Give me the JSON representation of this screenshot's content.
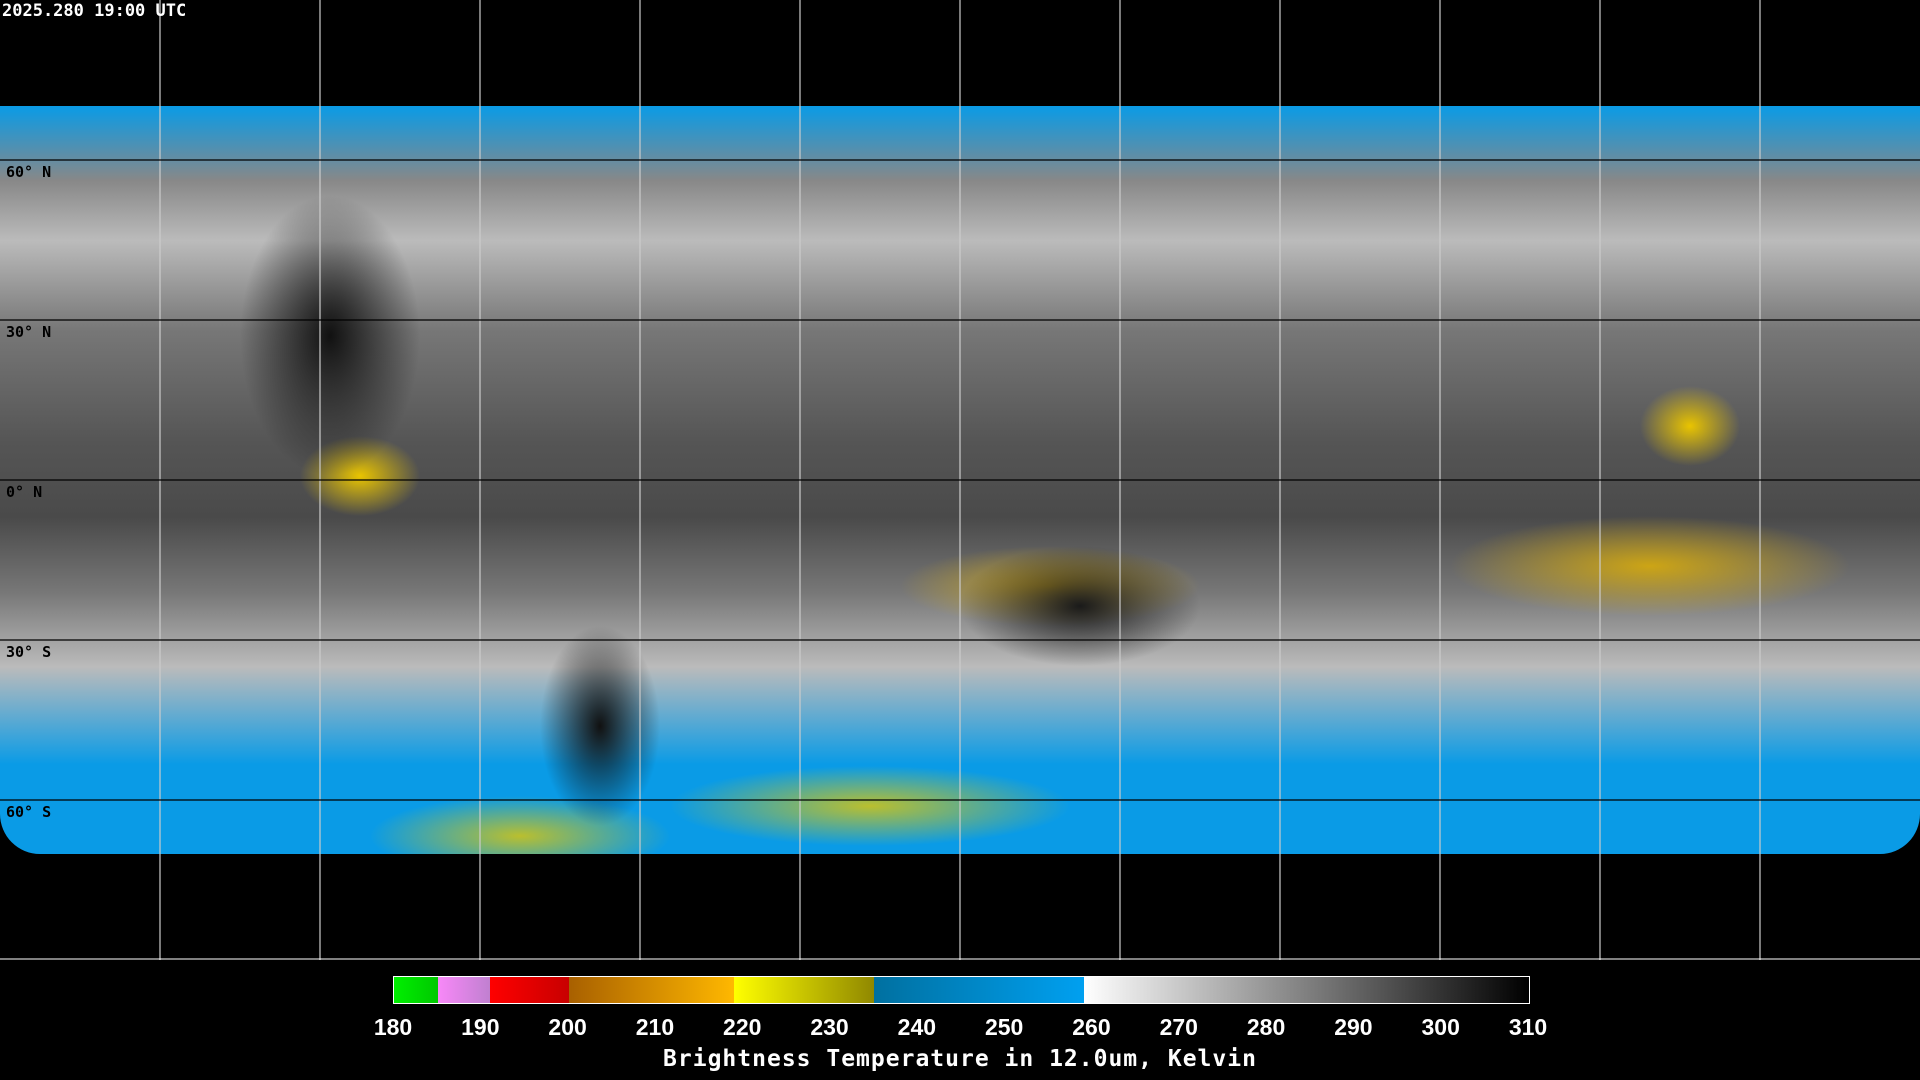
{
  "title": "2025.280 19:00 UTC",
  "lat_labels": [
    "60° N",
    "30° N",
    "0° N",
    "30° S",
    "60° S"
  ],
  "colorbar": {
    "title": "Brightness Temperature in 12.0um, Kelvin",
    "ticks": [
      "180",
      "190",
      "200",
      "210",
      "220",
      "230",
      "240",
      "250",
      "260",
      "270",
      "280",
      "290",
      "300",
      "310"
    ],
    "range": [
      180,
      310
    ],
    "segments": [
      {
        "from": 180,
        "to": 185,
        "gradient": [
          "#00f000",
          "#00c800"
        ]
      },
      {
        "from": 185,
        "to": 191,
        "gradient": [
          "#f888f8",
          "#c080d0"
        ]
      },
      {
        "from": 191,
        "to": 200,
        "gradient": [
          "#ff0000",
          "#c80000"
        ]
      },
      {
        "from": 200,
        "to": 219,
        "gradient": [
          "#a86000",
          "#ffb800"
        ]
      },
      {
        "from": 219,
        "to": 235,
        "gradient": [
          "#ffff00",
          "#908800"
        ]
      },
      {
        "from": 235,
        "to": 259,
        "gradient": [
          "#0070a0",
          "#00a0f0"
        ]
      },
      {
        "from": 259,
        "to": 310,
        "gradient": [
          "#ffffff",
          "#000000"
        ]
      }
    ]
  }
}
